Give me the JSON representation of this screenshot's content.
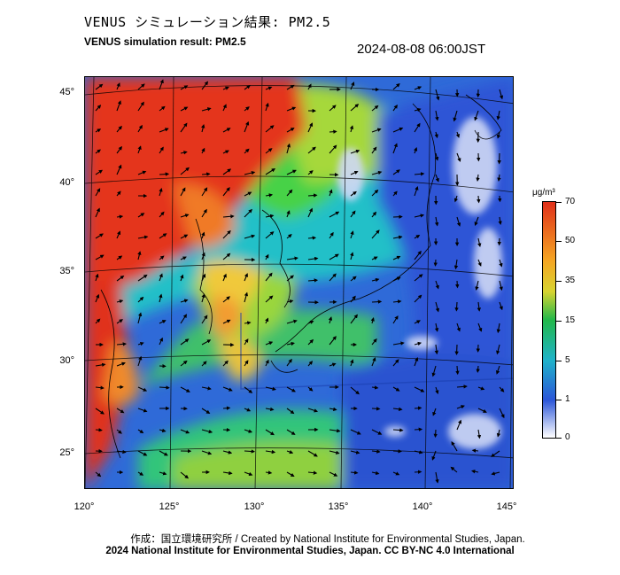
{
  "header": {
    "title_jp": "VENUS シミュレーション結果: PM2.5",
    "title_en": "VENUS simulation result: PM2.5",
    "timestamp": "2024-08-08 06:00JST"
  },
  "map": {
    "lat_labels": [
      "45°",
      "40°",
      "35°",
      "30°",
      "25°"
    ],
    "lon_labels": [
      "120°",
      "125°",
      "130°",
      "135°",
      "140°",
      "145°"
    ]
  },
  "colorbar": {
    "unit": "μg/m³",
    "ticks": [
      "70",
      "50",
      "35",
      "15",
      "5",
      "1",
      "0"
    ],
    "colors": {
      "high": "#e0301a",
      "mid_high": "#f5a623",
      "mid": "#22b84a",
      "mid_low": "#1fb3c9",
      "low": "#2b56d8",
      "zero": "#ffffff"
    }
  },
  "footer": {
    "credit_line1": "作成：国立環境研究所 / Created by National Institute for Environmental Studies, Japan.",
    "credit_line2": "2024 National Institute for Environmental Studies, Japan. CC BY-NC 4.0 International"
  }
}
